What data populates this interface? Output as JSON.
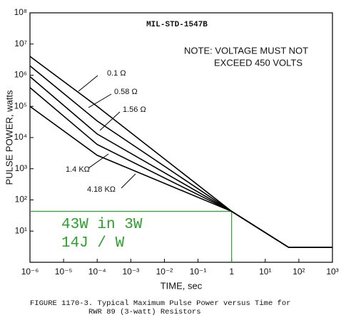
{
  "chart_data": {
    "type": "line",
    "header": "MIL-STD-1547B",
    "note": [
      "NOTE:  VOLTAGE MUST NOT",
      "EXCEED 450 VOLTS"
    ],
    "xlabel": "TIME, sec",
    "ylabel": "PULSE POWER, watts",
    "caption": [
      "FIGURE 1170-3. Typical Maximum Pulse Power versus Time for",
      "RWR 89 (3-watt) Resistors"
    ],
    "xscale": "log",
    "yscale": "log",
    "xlim": [
      1e-06,
      1000
    ],
    "ylim": [
      1,
      100000000
    ],
    "xticks": [
      {
        "value": 1e-06,
        "label": "10⁻⁶"
      },
      {
        "value": 1e-05,
        "label": "10⁻⁵"
      },
      {
        "value": 0.0001,
        "label": "10⁻⁴"
      },
      {
        "value": 0.001,
        "label": "10⁻³"
      },
      {
        "value": 0.01,
        "label": "10⁻²"
      },
      {
        "value": 0.1,
        "label": "10⁻¹"
      },
      1,
      {
        "value": 10,
        "label": "10¹"
      },
      {
        "value": 100,
        "label": "10²"
      },
      {
        "value": 1000,
        "label": "10³"
      }
    ],
    "yticks": [
      {
        "value": 10,
        "label": "10¹"
      },
      {
        "value": 100,
        "label": "10²"
      },
      {
        "value": 1000,
        "label": "10³"
      },
      {
        "value": 10000,
        "label": "10⁴"
      },
      {
        "value": 100000,
        "label": "10⁵"
      },
      {
        "value": 1000000,
        "label": "10⁶"
      },
      {
        "value": 10000000,
        "label": "10⁷"
      },
      {
        "value": 100000000,
        "label": "10⁸"
      }
    ],
    "x": [
      1e-06,
      0.0001,
      1,
      50,
      1000
    ],
    "series": [
      {
        "name": "0.1 Ω",
        "color": "#000000",
        "values": [
          4000000,
          100000,
          43,
          3,
          3
        ]
      },
      {
        "name": "0.58 Ω",
        "color": "#000000",
        "values": [
          2000000,
          34000,
          43,
          3,
          3
        ]
      },
      {
        "name": "1.56 Ω",
        "color": "#000000",
        "values": [
          900000,
          13000,
          43,
          3,
          3
        ]
      },
      {
        "name": "1.4 KΩ",
        "color": "#000000",
        "values": [
          400000,
          6000,
          43,
          3,
          3
        ]
      },
      {
        "name": "4.18 KΩ",
        "color": "#000000",
        "values": [
          100000,
          2700,
          43,
          3,
          3
        ]
      }
    ],
    "highlight": {
      "x": 1,
      "y": 43,
      "color": "#2ca02c",
      "lines": [
        "43W in 3W",
        "14J / W"
      ]
    }
  }
}
